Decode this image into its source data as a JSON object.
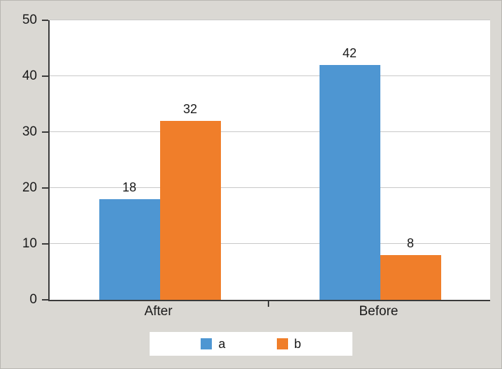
{
  "chart_data": {
    "type": "bar",
    "title": "",
    "xlabel": "",
    "ylabel": "",
    "categories": [
      "After",
      "Before"
    ],
    "series": [
      {
        "name": "a",
        "color": "#4e96d2",
        "values": [
          18,
          42
        ]
      },
      {
        "name": "b",
        "color": "#f07e2a",
        "values": [
          32,
          8
        ]
      }
    ],
    "ylim": [
      0,
      50
    ],
    "yticks": [
      0,
      10,
      20,
      30,
      40,
      50
    ],
    "grid": true,
    "show_data_labels": true,
    "legend_position": "bottom"
  },
  "colors": {
    "background": "#dad8d3",
    "plot_background": "#ffffff",
    "gridline": "#c8c8c8",
    "axis": "#3a3a3a",
    "text": "#1a1a1a",
    "legend_background": "#ffffff"
  }
}
